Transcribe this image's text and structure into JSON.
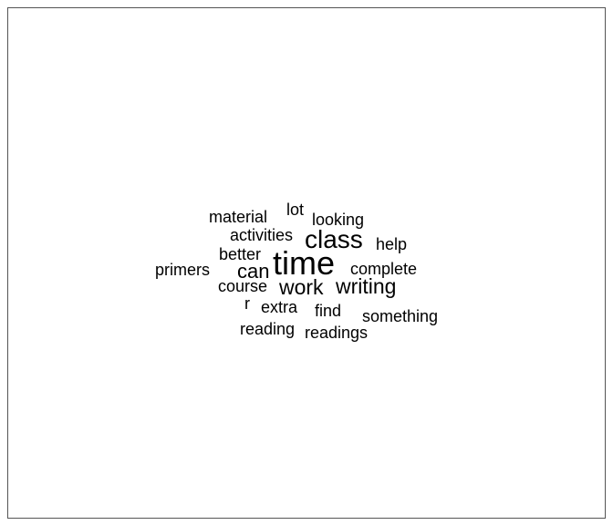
{
  "wordcloud": {
    "words": [
      {
        "text": "time",
        "weight": 10
      },
      {
        "text": "class",
        "weight": 6
      },
      {
        "text": "work",
        "weight": 4
      },
      {
        "text": "writing",
        "weight": 4
      },
      {
        "text": "can",
        "weight": 4
      },
      {
        "text": "material",
        "weight": 3
      },
      {
        "text": "lot",
        "weight": 3
      },
      {
        "text": "looking",
        "weight": 3
      },
      {
        "text": "activities",
        "weight": 3
      },
      {
        "text": "help",
        "weight": 3
      },
      {
        "text": "better",
        "weight": 3
      },
      {
        "text": "primers",
        "weight": 3
      },
      {
        "text": "complete",
        "weight": 3
      },
      {
        "text": "course",
        "weight": 3
      },
      {
        "text": "r",
        "weight": 3
      },
      {
        "text": "extra",
        "weight": 3
      },
      {
        "text": "find",
        "weight": 3
      },
      {
        "text": "something",
        "weight": 3
      },
      {
        "text": "reading",
        "weight": 3
      },
      {
        "text": "readings",
        "weight": 3
      }
    ]
  }
}
